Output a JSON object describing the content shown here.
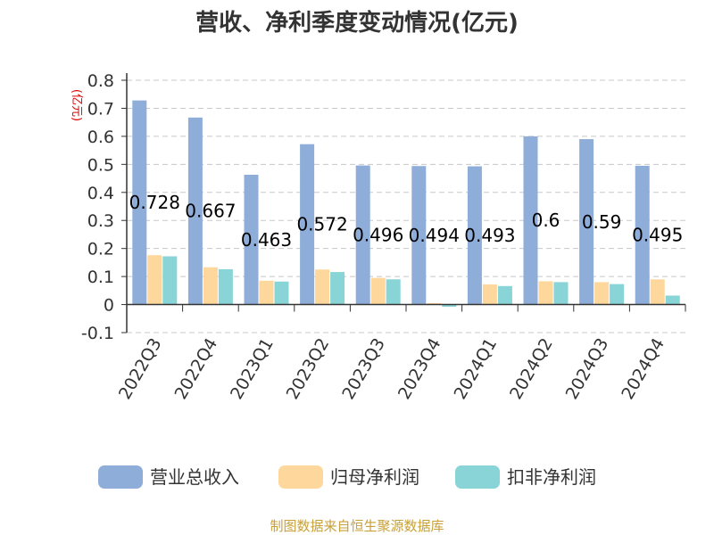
{
  "chart_data": {
    "type": "bar",
    "title": "营收、净利季度变动情况(亿元)",
    "ylabel": "(亿元)",
    "ylim": [
      -0.1,
      0.8
    ],
    "yticks": [
      0.8,
      0.7,
      0.6,
      0.5,
      0.4,
      0.3,
      0.2,
      0.1,
      0,
      -0.1
    ],
    "ytick_labels": [
      "0.8",
      "0.7",
      "0.6",
      "0.5",
      "0.4",
      "0.3",
      "0.2",
      "0.1",
      "0",
      "-0.1"
    ],
    "grid": true,
    "legend_position": "bottom",
    "categories": [
      "2022Q3",
      "2022Q4",
      "2023Q1",
      "2023Q2",
      "2023Q3",
      "2023Q4",
      "2024Q1",
      "2024Q2",
      "2024Q3",
      "2024Q4"
    ],
    "series": [
      {
        "name": "营业总收入",
        "color": "#8eadd9",
        "values": [
          0.728,
          0.667,
          0.463,
          0.572,
          0.496,
          0.494,
          0.493,
          0.6,
          0.59,
          0.495
        ]
      },
      {
        "name": "归母净利润",
        "color": "#fdd79b",
        "values": [
          0.176,
          0.133,
          0.085,
          0.125,
          0.095,
          0.005,
          0.072,
          0.083,
          0.08,
          0.09
        ]
      },
      {
        "name": "扣非净利润",
        "color": "#88d4d6",
        "values": [
          0.172,
          0.126,
          0.082,
          0.116,
          0.09,
          -0.008,
          0.066,
          0.08,
          0.073,
          0.032
        ]
      }
    ],
    "data_labels": [
      "0.728",
      "0.667",
      "0.463",
      "0.572",
      "0.496",
      "0.494",
      "0.493",
      "0.6",
      "0.59",
      "0.495"
    ]
  },
  "source_text": "制图数据来自恒生聚源数据库"
}
